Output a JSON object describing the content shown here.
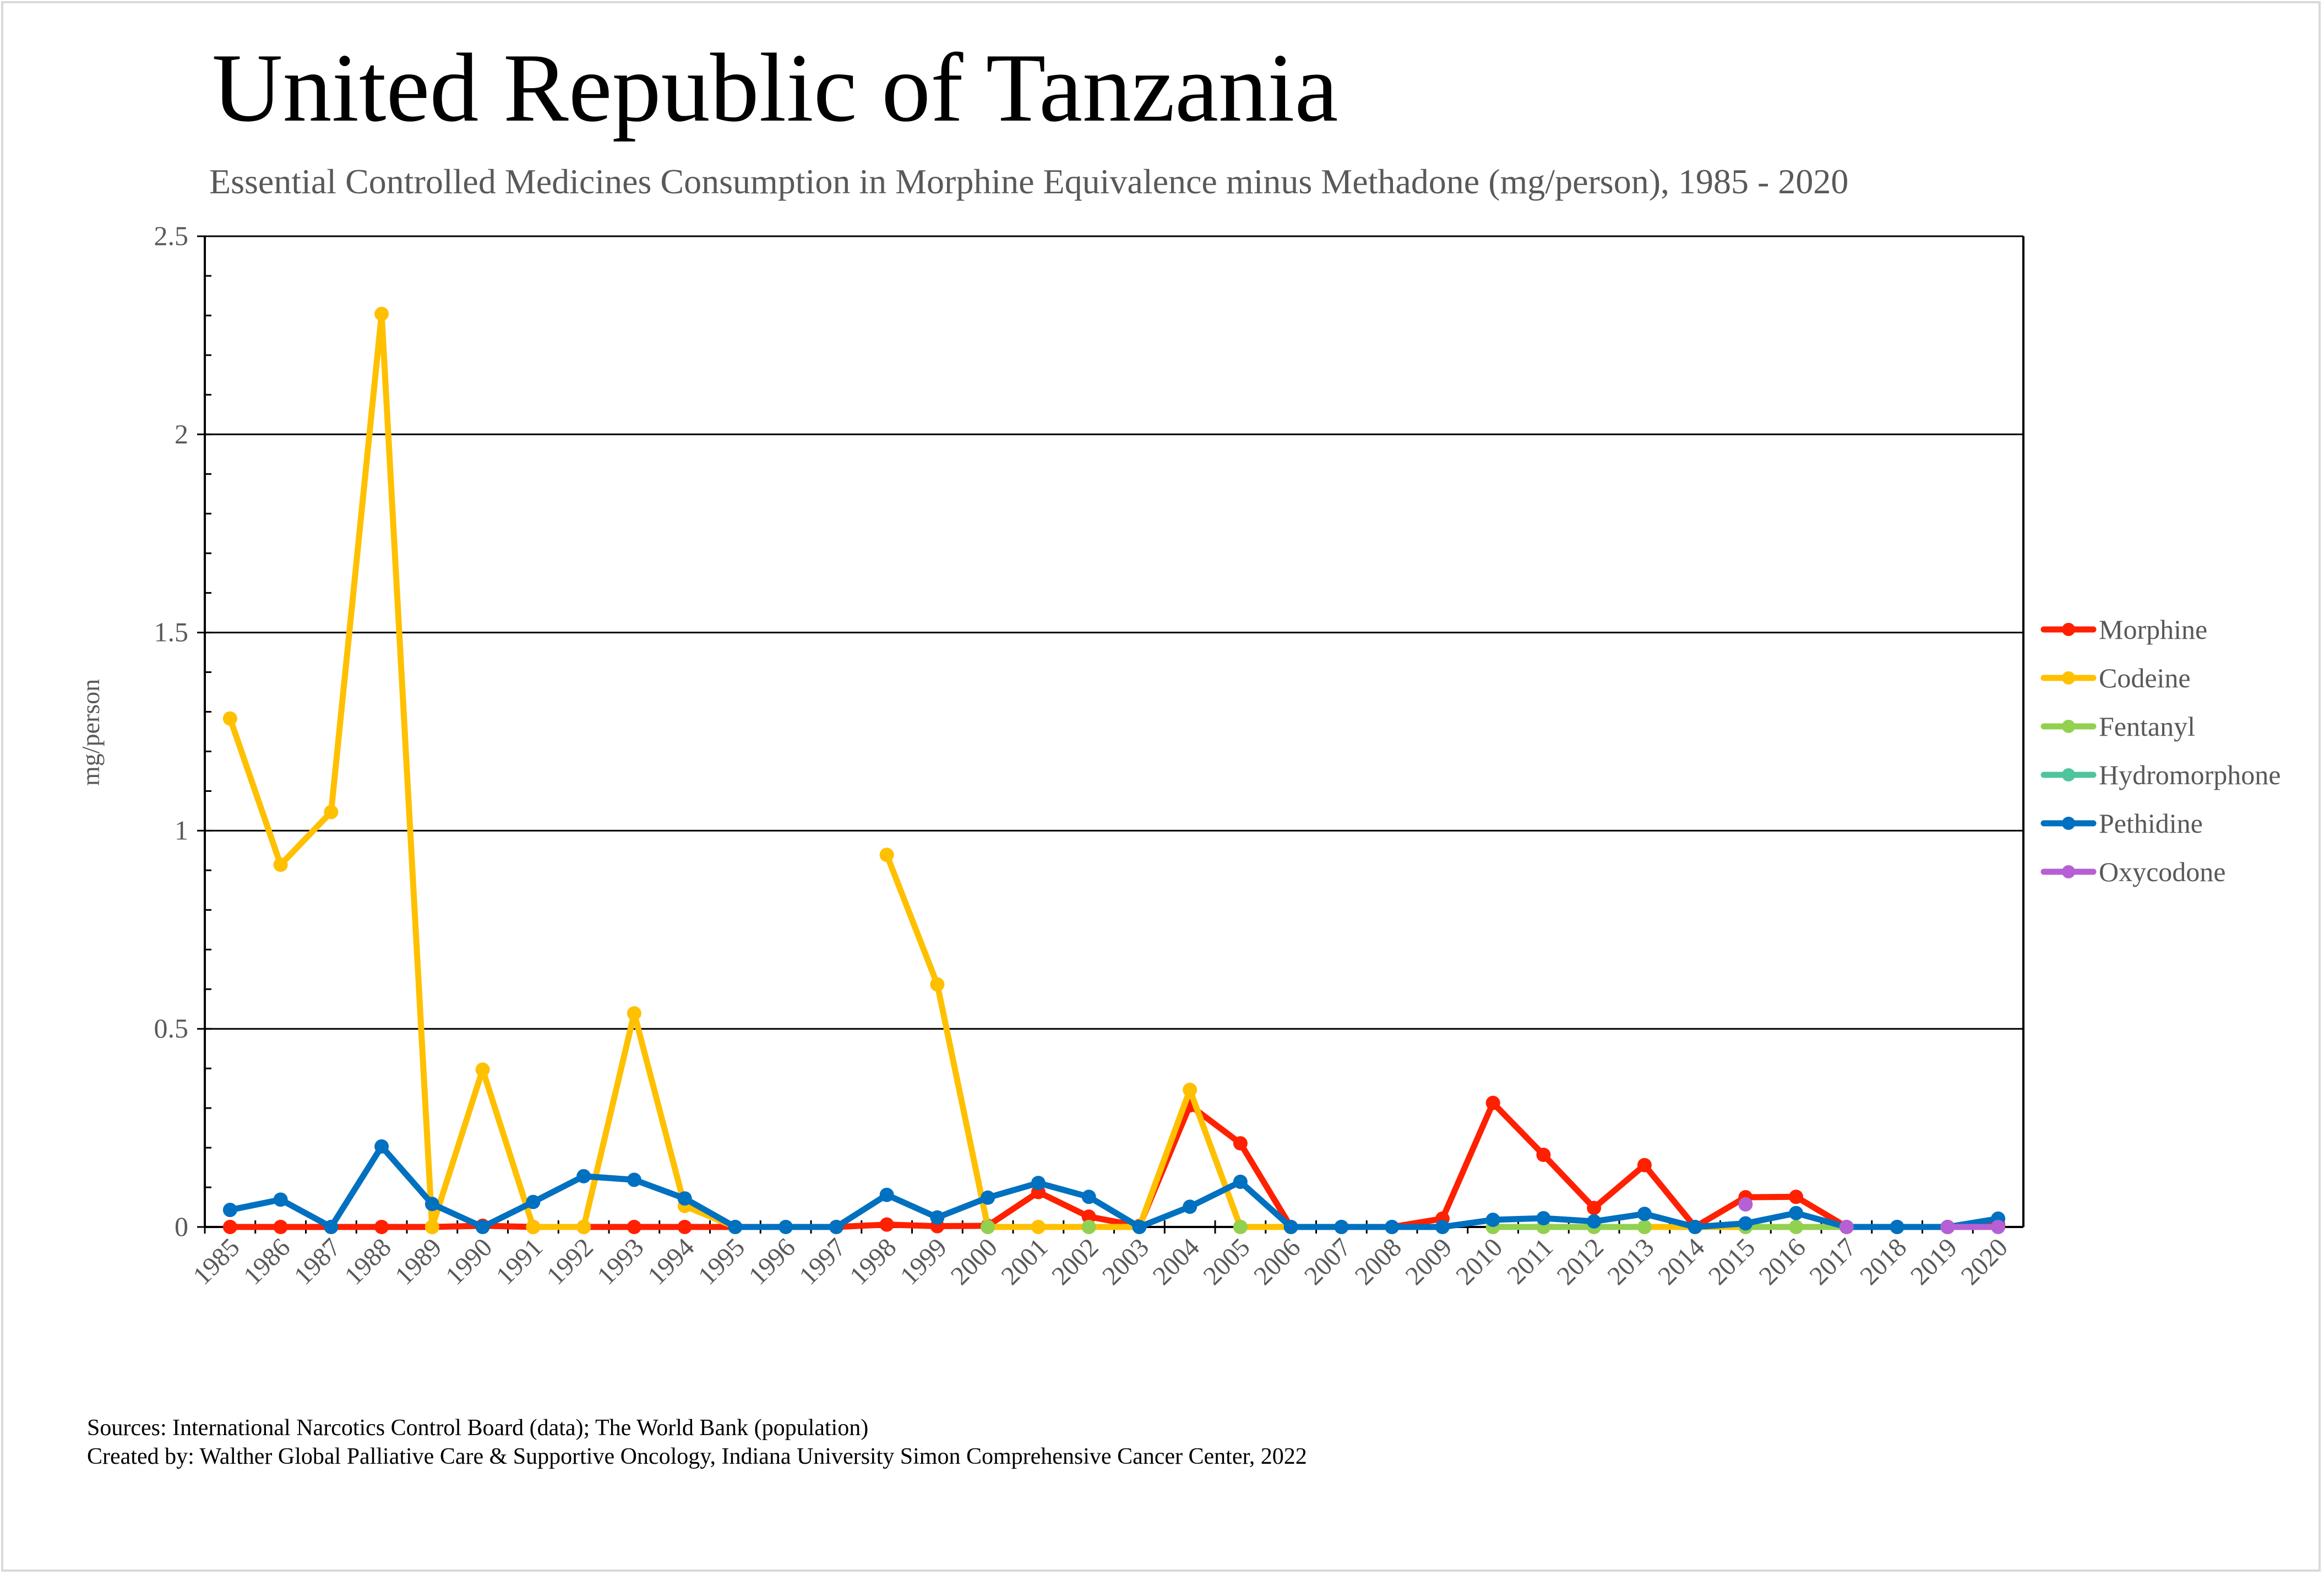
{
  "header": {
    "title": "United Republic of Tanzania",
    "subtitle": "Essential Controlled Medicines Consumption in Morphine Equivalence minus Methadone (mg/person), 1985 - 2020"
  },
  "footer": {
    "sources": "Sources: International Narcotics Control Board (data); The World Bank (population)",
    "created_by": "Created by: Walther Global Palliative Care & Supportive Oncology, Indiana University Simon Comprehensive Cancer Center, 2022"
  },
  "chart_data": {
    "type": "line",
    "title": "United Republic of Tanzania",
    "subtitle": "Essential Controlled Medicines Consumption in Morphine Equivalence minus Methadone (mg/person), 1985 - 2020",
    "xlabel": "",
    "ylabel": "mg/person",
    "ylim": [
      0,
      2.5
    ],
    "yticks": [
      "0",
      "0.5",
      "1",
      "1.5",
      "2",
      "2.5"
    ],
    "ytick_values": [
      0,
      0.5,
      1,
      1.5,
      2,
      2.5
    ],
    "grid": true,
    "legend_position": "right",
    "categories": [
      "1985",
      "1986",
      "1987",
      "1988",
      "1989",
      "1990",
      "1991",
      "1992",
      "1993",
      "1994",
      "1995",
      "1996",
      "1997",
      "1998",
      "1999",
      "2000",
      "2001",
      "2002",
      "2003",
      "2004",
      "2005",
      "2006",
      "2007",
      "2008",
      "2009",
      "2010",
      "2011",
      "2012",
      "2013",
      "2014",
      "2015",
      "2016",
      "2017",
      "2018",
      "2019",
      "2020"
    ],
    "series": [
      {
        "name": "Morphine",
        "color": "#FF2000",
        "values": [
          0,
          0,
          0,
          0,
          0,
          0.003,
          0,
          0,
          0,
          0,
          0,
          null,
          0,
          0.006,
          0.002,
          0.003,
          0.088,
          0.026,
          0.002,
          0.307,
          0.211,
          0,
          0,
          0,
          0.021,
          0.313,
          0.182,
          0.048,
          0.156,
          0,
          0.075,
          0.076,
          0,
          0,
          0,
          0.005
        ]
      },
      {
        "name": "Codeine",
        "color": "#FFC000",
        "values": [
          1.283,
          0.914,
          1.047,
          2.304,
          0,
          0.397,
          0,
          0,
          0.539,
          0.053,
          0,
          null,
          null,
          0.939,
          0.612,
          0,
          0,
          0,
          0,
          0.346,
          0,
          0,
          null,
          null,
          null,
          0,
          0,
          0,
          0,
          0,
          0,
          0,
          0,
          null,
          null,
          null
        ]
      },
      {
        "name": "Fentanyl",
        "color": "#92D050",
        "values": [
          null,
          null,
          null,
          null,
          null,
          null,
          null,
          null,
          null,
          null,
          null,
          null,
          null,
          null,
          null,
          0,
          null,
          0,
          null,
          null,
          0,
          null,
          null,
          null,
          null,
          0,
          0,
          0,
          0,
          null,
          0,
          0,
          0,
          null,
          null,
          null
        ]
      },
      {
        "name": "Hydromorphone",
        "color": "#4FC49E",
        "values": [
          null,
          null,
          null,
          null,
          null,
          null,
          null,
          null,
          null,
          null,
          null,
          null,
          null,
          null,
          null,
          null,
          null,
          null,
          null,
          null,
          null,
          null,
          null,
          null,
          null,
          null,
          null,
          null,
          null,
          null,
          null,
          null,
          null,
          null,
          null,
          null
        ]
      },
      {
        "name": "Pethidine",
        "color": "#0070C0",
        "values": [
          0.043,
          0.069,
          0,
          0.203,
          0.058,
          0,
          0.063,
          0.128,
          0.119,
          0.072,
          0,
          0,
          0,
          0.081,
          0.024,
          0.074,
          0.111,
          0.076,
          0,
          0.051,
          0.114,
          0,
          0,
          0,
          0,
          0.018,
          0.022,
          0.014,
          0.033,
          0,
          0.009,
          0.035,
          0,
          0,
          0,
          0.021
        ]
      },
      {
        "name": "Oxycodone",
        "color": "#B560D4",
        "values": [
          null,
          null,
          null,
          null,
          null,
          null,
          null,
          null,
          null,
          null,
          null,
          null,
          null,
          null,
          null,
          null,
          null,
          null,
          null,
          null,
          null,
          null,
          null,
          null,
          null,
          null,
          null,
          null,
          null,
          null,
          0.057,
          null,
          0,
          null,
          0,
          0
        ]
      }
    ]
  }
}
